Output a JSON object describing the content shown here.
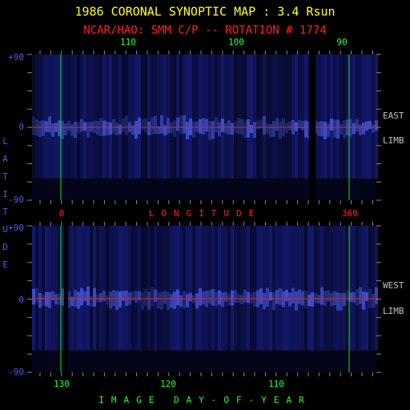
{
  "header": {
    "title": "1986 CORONAL SYNOPTIC MAP : 3.4 Rsun",
    "subtitle": "NCAR/HAO: SMM C/P -- ROTATION # 1774"
  },
  "y_axis_label": "LATITUDE",
  "top_panel": {
    "top_ticks": [
      "110",
      "100",
      "90"
    ],
    "lat_ticks": [
      "+90",
      "0",
      "-90"
    ],
    "side_labels": [
      "EAST",
      "LIMB"
    ]
  },
  "longitude_axis": {
    "label": "LONGITUDE",
    "ticks": [
      "0",
      "360"
    ]
  },
  "bottom_panel": {
    "lat_ticks": [
      "+90",
      "0",
      "-90"
    ],
    "side_labels": [
      "WEST",
      "LIMB"
    ]
  },
  "day_axis": {
    "label": "IMAGE DAY-OF-YEAR",
    "ticks": [
      "130",
      "120",
      "110"
    ]
  }
}
